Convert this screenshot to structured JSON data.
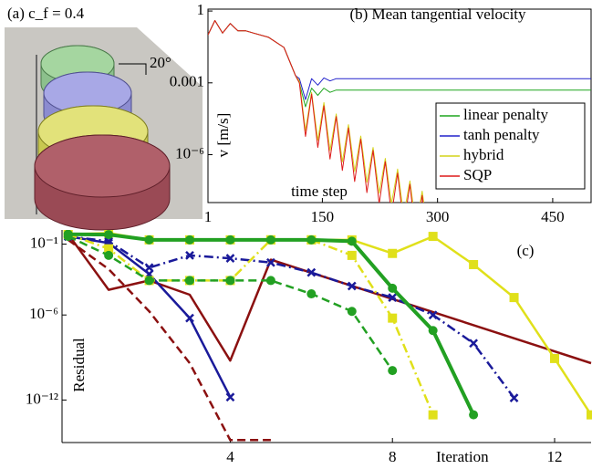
{
  "image_panel": {
    "title": "(a) c_f = 0.4",
    "annotation": "20°"
  },
  "chart_data": [
    {
      "type": "line",
      "title": "(b) Mean tangential velocity",
      "x_label": "time step",
      "y_label": "v [m/s]",
      "log_y": true,
      "xlim": [
        1,
        500
      ],
      "ylim": [
        1e-08,
        1.2
      ],
      "xticks": [
        1,
        150,
        300,
        450
      ],
      "yticks": [
        1,
        0.001,
        {
          "value": 1e-06,
          "label": "10⁻⁶"
        }
      ],
      "legend": "lower right",
      "x": [
        1,
        10,
        20,
        30,
        40,
        50,
        60,
        80,
        100,
        115,
        120,
        128,
        136,
        144,
        152,
        160,
        168,
        176,
        184,
        192,
        200,
        208,
        216,
        224,
        232,
        240,
        248,
        256,
        264,
        272,
        280,
        288,
        296,
        350,
        400,
        450,
        500
      ],
      "series": [
        {
          "name": "linear penalty",
          "color": "#1fa51f",
          "values": [
            0.1,
            0.4,
            0.12,
            0.3,
            0.15,
            0.15,
            0.12,
            0.08,
            0.03,
            0.002,
            0.001,
            0.0001,
            0.0006,
            0.0003,
            0.0006,
            0.0004,
            0.0005,
            0.0005,
            0.0005,
            0.0005,
            0.0005,
            0.0005,
            0.0005,
            0.0005,
            0.0005,
            0.0005,
            0.0005,
            0.0005,
            0.0005,
            0.0005,
            0.0005,
            0.0005,
            0.0005,
            0.0005,
            0.0005,
            0.0005,
            0.0005
          ]
        },
        {
          "name": "tanh penalty",
          "color": "#2222cc",
          "values": [
            0.1,
            0.4,
            0.12,
            0.3,
            0.15,
            0.15,
            0.12,
            0.08,
            0.03,
            0.002,
            0.0015,
            0.0002,
            0.0015,
            0.0008,
            0.0016,
            0.0012,
            0.0015,
            0.0015,
            0.0015,
            0.0015,
            0.0015,
            0.0015,
            0.0015,
            0.0015,
            0.0015,
            0.0015,
            0.0015,
            0.0015,
            0.0015,
            0.0015,
            0.0015,
            0.0015,
            0.0015,
            0.0015,
            0.0015,
            0.0015,
            0.0015
          ]
        },
        {
          "name": "hybrid",
          "color": "#d4d41a",
          "values": [
            0.1,
            0.4,
            0.12,
            0.3,
            0.15,
            0.15,
            0.12,
            0.08,
            0.03,
            0.002,
            0.0012,
            1e-05,
            0.0004,
            4e-06,
            0.00015,
            1.5e-06,
            5e-05,
            5e-07,
            1.8e-05,
            2e-07,
            6e-06,
            7e-08,
            2e-06,
            2.5e-08,
            7e-07,
            9e-09,
            2.5e-07,
            3e-09,
            8e-08,
            1e-09,
            3e-08,
            4e-10,
            1e-08,
            null,
            null,
            null,
            null
          ]
        },
        {
          "name": "SQP",
          "color": "#dd1a1a",
          "values": [
            0.1,
            0.4,
            0.12,
            0.3,
            0.15,
            0.15,
            0.12,
            0.08,
            0.03,
            0.002,
            0.001,
            5.8e-06,
            0.00034,
            2e-06,
            0.00011,
            6.6e-07,
            3.9e-05,
            2.2e-07,
            1.3e-05,
            7.6e-08,
            4.4e-06,
            2.6e-08,
            1.5e-06,
            9e-09,
            5.1e-07,
            3e-09,
            1.7e-07,
            1e-09,
            5.8e-08,
            3e-10,
            2e-08,
            1e-10,
            6e-09,
            null,
            null,
            null,
            null
          ]
        }
      ]
    },
    {
      "type": "line",
      "x_label": "Iteration",
      "y_label": "Residual",
      "annotation": "(c)",
      "log_y": true,
      "xlim": [
        -0.15,
        12.9
      ],
      "ylim": [
        1e-15,
        1
      ],
      "xticks": [
        4,
        8,
        12
      ],
      "yticks": [
        {
          "value": 0.1,
          "label": "10⁻¹"
        },
        {
          "value": 1e-06,
          "label": "10⁻⁶"
        },
        {
          "value": 1e-12,
          "label": "10⁻¹²"
        }
      ],
      "series": [
        {
          "color": "#8b1010",
          "style": "solid",
          "marker": "none",
          "x": [
            0,
            1,
            2,
            3,
            4,
            5,
            12.9
          ],
          "values": [
            0.5,
            6e-05,
            0.00027,
            2.7e-05,
            6e-10,
            0.008,
            4e-10
          ]
        },
        {
          "color": "#8b1010",
          "style": "dashed",
          "marker": "none",
          "x": [
            0,
            1,
            2,
            3,
            4,
            5
          ],
          "values": [
            0.2,
            0.0017,
            1.8e-06,
            4e-10,
            1.5e-15,
            1.5e-15
          ]
        },
        {
          "color": "#1a1a9a",
          "style": "solid",
          "marker": "x",
          "x": [
            0,
            1,
            2,
            3,
            4
          ],
          "values": [
            0.35,
            0.12,
            0.00077,
            6e-07,
            1.6e-12
          ]
        },
        {
          "color": "#1a1a9a",
          "style": "dashdot",
          "marker": "x",
          "x": [
            0,
            1,
            2,
            3,
            4,
            5,
            6,
            7,
            8,
            9,
            10,
            11
          ],
          "values": [
            0.35,
            0.16,
            0.0022,
            0.016,
            0.01,
            0.005,
            0.001,
            0.00011,
            1.7e-05,
            1e-06,
            1e-08,
            1.4e-12
          ]
        },
        {
          "color": "#e0e01a",
          "style": "solid",
          "marker": "square",
          "x": [
            0,
            1,
            2,
            3,
            4,
            5,
            6,
            7,
            8,
            9,
            10,
            11,
            12,
            12.9
          ],
          "values": [
            0.5,
            0.6,
            0.2,
            0.2,
            0.2,
            0.2,
            0.2,
            0.2,
            0.022,
            0.35,
            0.0036,
            1.7e-05,
            8.5e-10,
            9e-14
          ]
        },
        {
          "color": "#e0e01a",
          "style": "dashdot",
          "marker": "square",
          "x": [
            0,
            1,
            2,
            3,
            4,
            5,
            6,
            7,
            8,
            9
          ],
          "values": [
            0.5,
            0.047,
            0.00027,
            0.00027,
            0.00027,
            0.2,
            0.2,
            0.016,
            6e-07,
            9e-14
          ]
        },
        {
          "color": "#22a022",
          "style": "solid",
          "marker": "circle",
          "x": [
            0,
            1,
            2,
            3,
            4,
            5,
            6,
            7,
            8,
            9,
            10
          ],
          "values": [
            0.5,
            0.47,
            0.2,
            0.2,
            0.2,
            0.2,
            0.2,
            0.16,
            7.7e-05,
            8e-08,
            9e-14
          ]
        },
        {
          "color": "#22a022",
          "style": "dashed",
          "marker": "circle",
          "x": [
            0,
            1,
            2,
            3,
            4,
            5,
            6,
            7,
            8
          ],
          "values": [
            0.35,
            0.016,
            0.00027,
            0.00027,
            0.00027,
            0.00027,
            3.1e-05,
            1.8e-06,
            1.2e-10
          ]
        }
      ]
    }
  ]
}
